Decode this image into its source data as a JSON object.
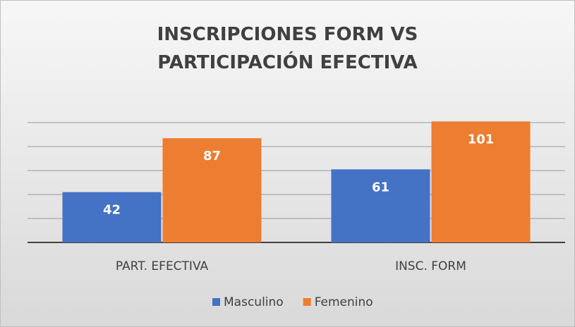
{
  "chart_data": {
    "type": "bar",
    "title": "INSCRIPCIONES FORM VS PARTICIPACIÓN EFECTIVA",
    "categories": [
      "PART. EFECTIVA",
      "INSC. FORM"
    ],
    "series": [
      {
        "name": "Masculino",
        "color": "#4472c4",
        "values": [
          42,
          61
        ]
      },
      {
        "name": "Femenino",
        "color": "#ed7d31",
        "values": [
          87,
          101
        ]
      }
    ],
    "ylim": [
      0,
      120
    ],
    "yticks": [
      0,
      20,
      40,
      60,
      80,
      100
    ],
    "grid": true,
    "legend": "bottom"
  }
}
